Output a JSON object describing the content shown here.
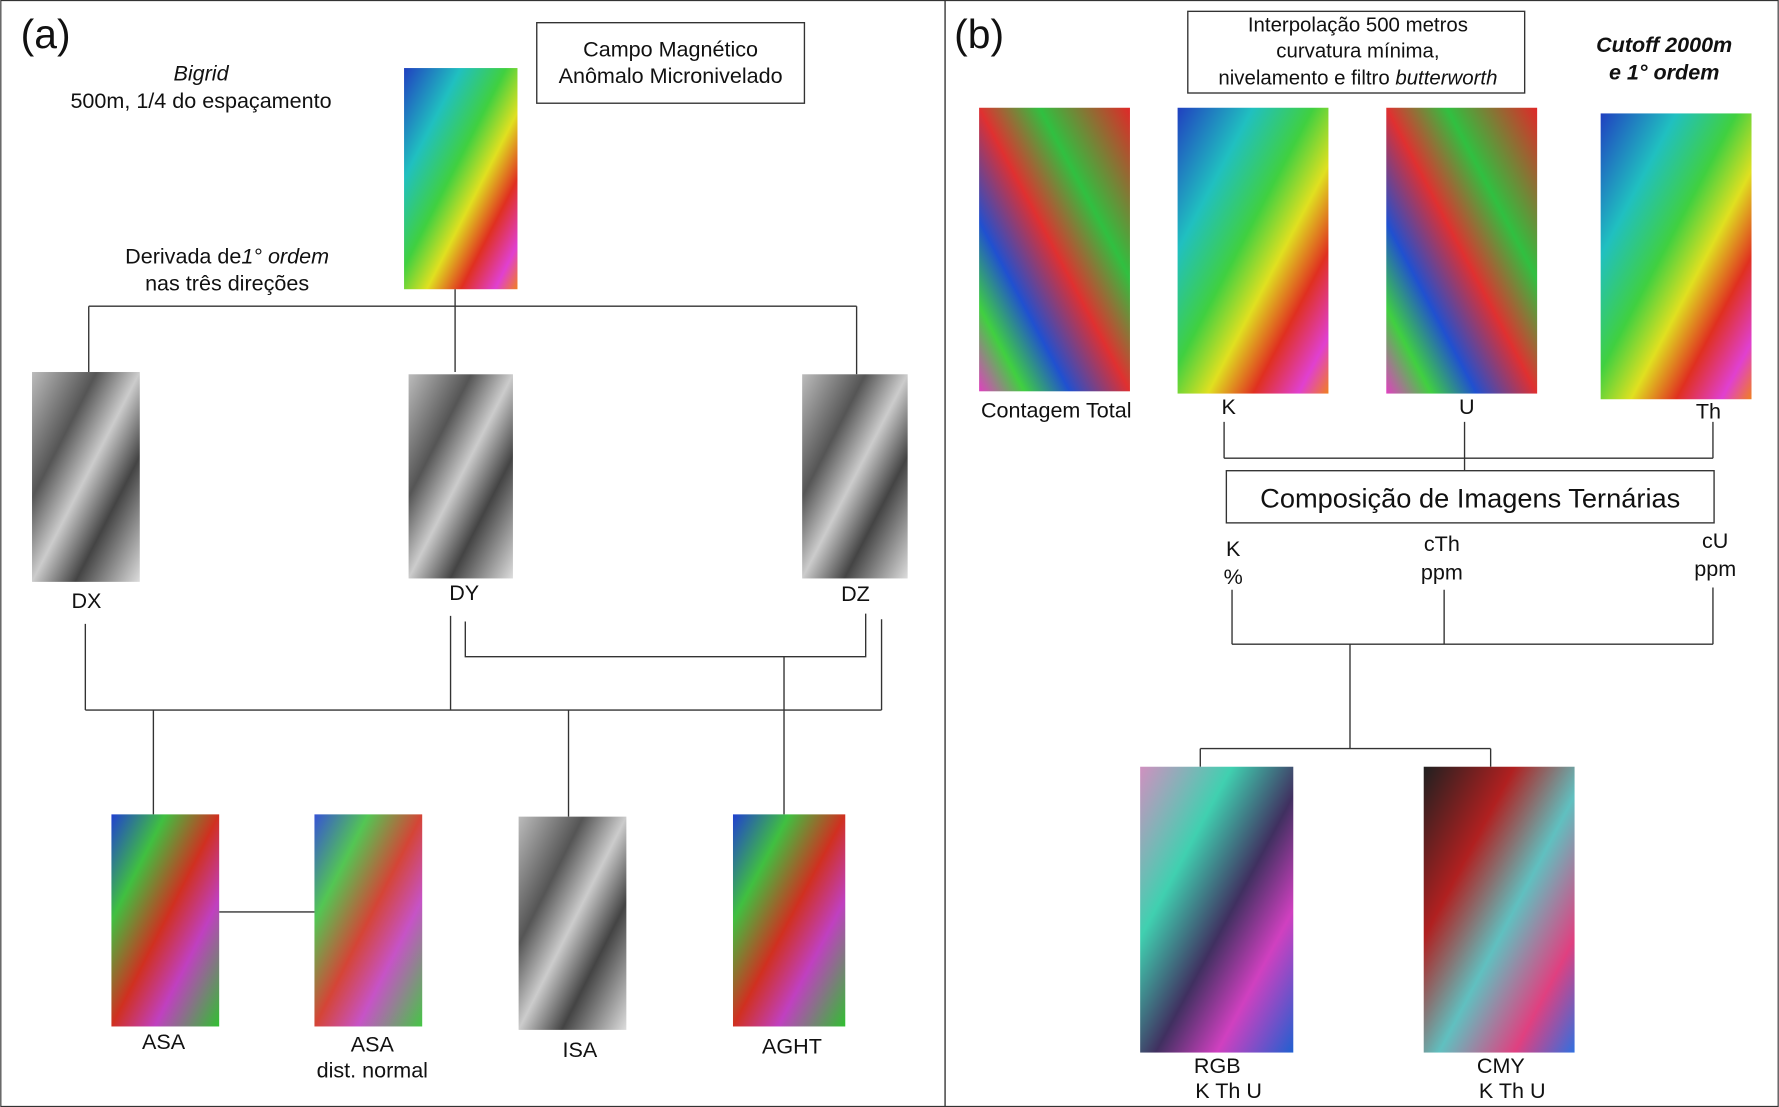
{
  "panel_a": {
    "tag": "(a)",
    "bigrid_title": "Bigrid",
    "bigrid_subtitle": "500m, 1/4 do espaçamento",
    "source_box": [
      "Campo Magnético",
      "Anômalo Micronivelado"
    ],
    "derivative_note": {
      "prefix": "Derivada de",
      "order": "1° ordem",
      "line2": "nas três direções"
    },
    "derivatives": [
      "DX",
      "DY",
      "DZ"
    ],
    "products": {
      "asa": "ASA",
      "asa_normal": [
        "ASA",
        "dist. normal"
      ],
      "isa": "ISA",
      "aght": "AGHT"
    }
  },
  "panel_b": {
    "tag": "(b)",
    "interpolation_box": {
      "line1": "Interpolação 500 metros",
      "line2": "curvatura mínima,",
      "line3_prefix": "nivelamento e filtro ",
      "line3_filter": "butterworth"
    },
    "cutoff_note": [
      "Cutoff 2000m",
      "e 1° ordem"
    ],
    "channels": [
      "Contagem Total",
      "K",
      "U",
      "Th"
    ],
    "composition_box": "Composição de Imagens Ternárias",
    "inputs": [
      [
        "K",
        "%"
      ],
      [
        "cTh",
        "ppm"
      ],
      [
        "cU",
        "ppm"
      ]
    ],
    "outputs": [
      [
        "RGB",
        "K Th U"
      ],
      [
        "CMY",
        "K Th U"
      ]
    ]
  }
}
